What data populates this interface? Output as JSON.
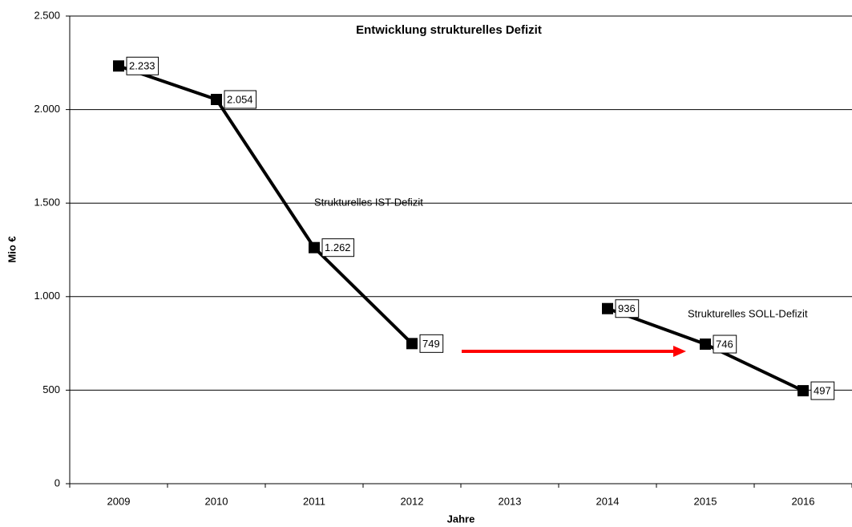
{
  "chart_data": {
    "type": "line",
    "title": "Entwicklung strukturelles Defizit",
    "x_label": "Jahre",
    "y_label": "Mio €",
    "categories": [
      "2009",
      "2010",
      "2011",
      "2012",
      "2013",
      "2014",
      "2015",
      "2016"
    ],
    "series": [
      {
        "color": "#000000",
        "values": [
          2233,
          2054,
          1262,
          749,
          null,
          936,
          746,
          497
        ],
        "value_labels": [
          "2.233",
          "2.054",
          "1.262",
          "749",
          null,
          "936",
          "746",
          "497"
        ]
      }
    ],
    "annotations": [
      "Strukturelles IST-Defizit",
      "Strukturelles SOLL-Defizit"
    ],
    "ylim": [
      0,
      2500
    ],
    "yticks": [
      0,
      500,
      {
        "value": 1000,
        "label": "1.000"
      },
      {
        "value": 1500,
        "label": "1.500"
      },
      {
        "value": 2000,
        "label": "2.000"
      },
      {
        "value": 2500,
        "label": "2.500"
      }
    ],
    "grid": true
  }
}
